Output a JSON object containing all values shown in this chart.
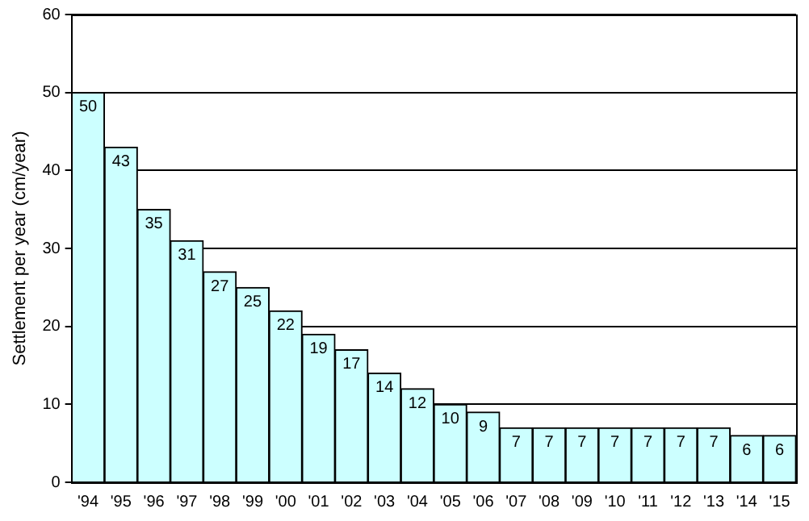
{
  "chart_data": {
    "type": "bar",
    "ylabel": "Settlement per year (cm/year)",
    "categories": [
      "'94",
      "'95",
      "'96",
      "'97",
      "'98",
      "'99",
      "'00",
      "'01",
      "'02",
      "'03",
      "'04",
      "'05",
      "'06",
      "'07",
      "'08",
      "'09",
      "'10",
      "'11",
      "'12",
      "'13",
      "'14",
      "'15"
    ],
    "values": [
      50,
      43,
      35,
      31,
      27,
      25,
      22,
      19,
      17,
      14,
      12,
      10,
      9,
      7,
      7,
      7,
      7,
      7,
      7,
      7,
      6,
      6
    ],
    "color": "#ccffff",
    "ylim": [
      0,
      60
    ],
    "yticks": [
      0,
      10,
      20,
      30,
      40,
      50,
      60
    ],
    "grid": "y",
    "data_labels": true,
    "legend": false
  }
}
